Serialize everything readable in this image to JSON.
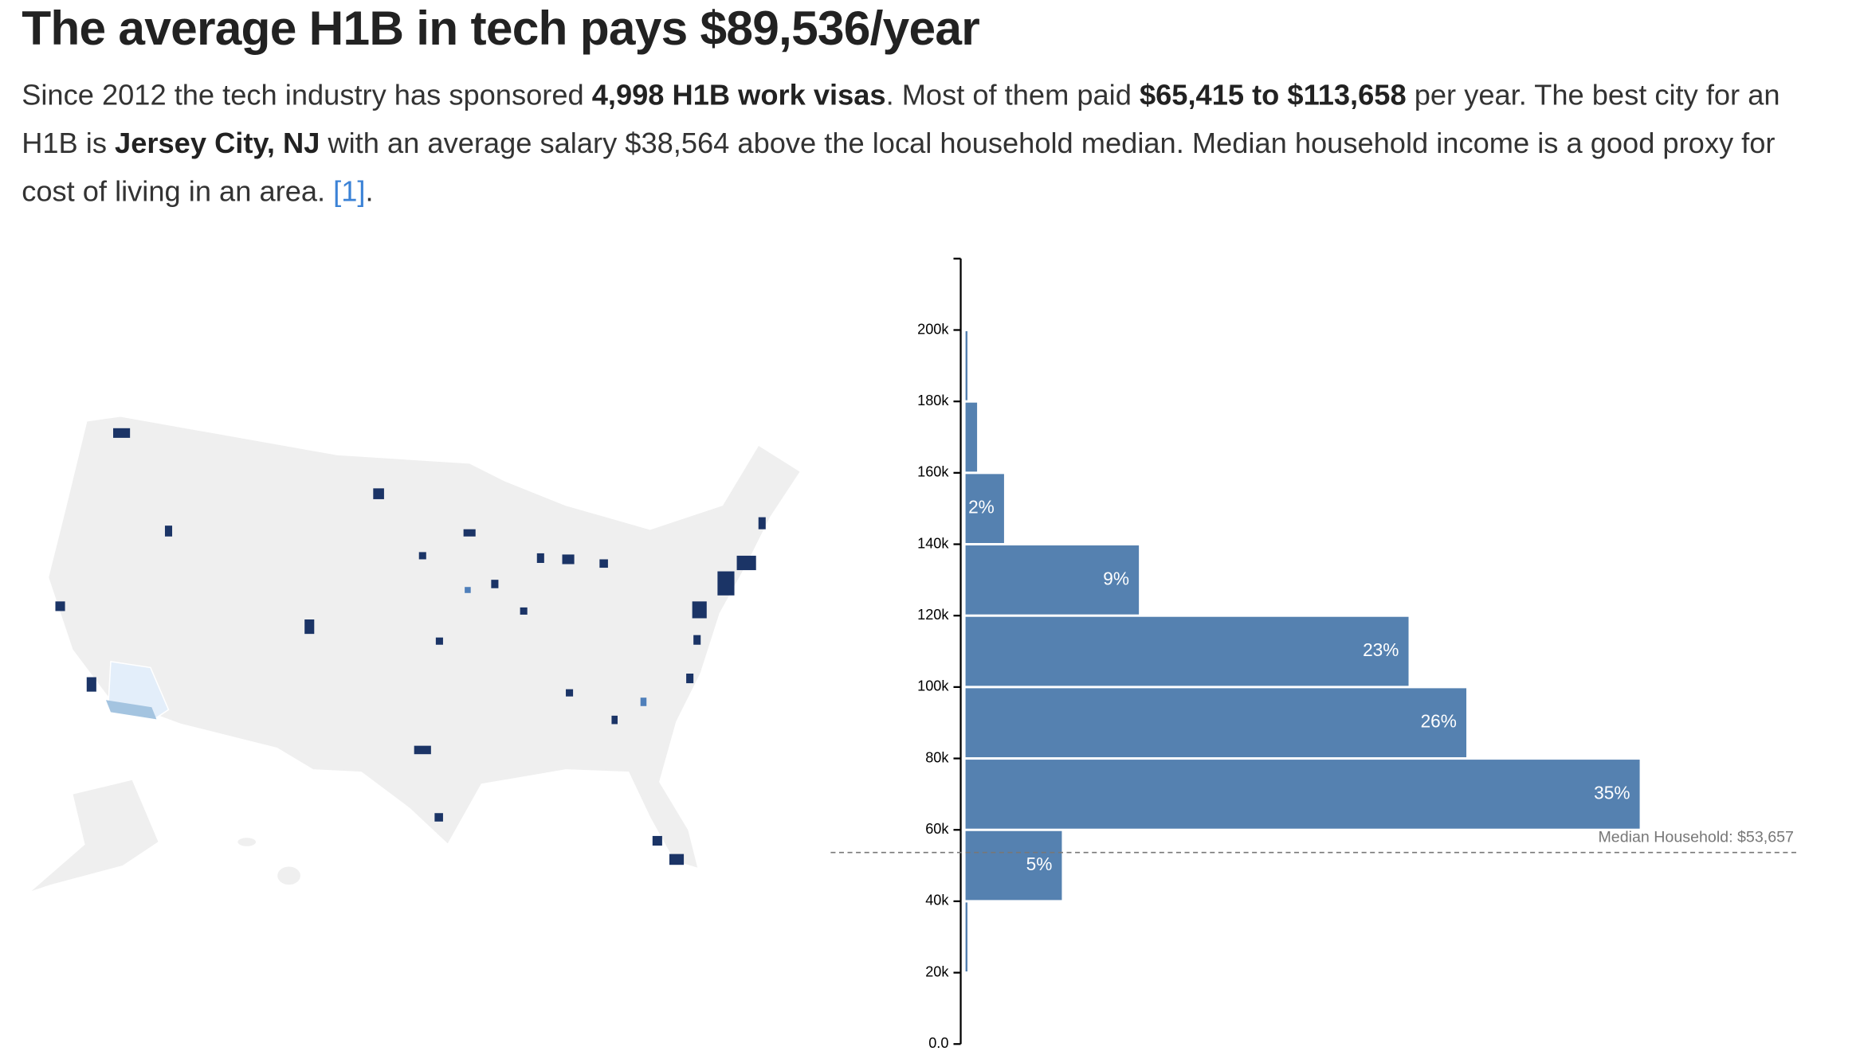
{
  "header": {
    "title": "The average H1B in tech pays $89,536/year"
  },
  "intro": [
    "Since 2012 the tech industry has sponsored ",
    "4,998 H1B work visas",
    ". Most of them paid ",
    "$65,415 to $113,658",
    " per year. The best city for an H1B is ",
    "Jersey City, NJ",
    " with an average salary $38,564 above the local household median. Median household income is a good proxy for cost of living in an area. ",
    "[1]",
    "."
  ],
  "chart_data": {
    "type": "histogram",
    "orientation": "horizontal",
    "color": "#5581b0",
    "bins": [
      0,
      20000,
      40000,
      60000,
      80000,
      100000,
      120000,
      140000,
      160000,
      180000,
      200000
    ],
    "values": [
      0,
      0.1,
      5,
      35,
      26,
      23,
      9,
      2,
      0.6,
      0.1
    ],
    "value_labels": [
      null,
      null,
      "5%",
      "35%",
      "26%",
      "23%",
      "9%",
      "2%",
      null,
      null
    ],
    "ylim": [
      0,
      220000
    ],
    "yticks": [
      {
        "value": 0,
        "label": "0.0"
      },
      {
        "value": 20000,
        "label": "20k"
      },
      {
        "value": 40000,
        "label": "40k"
      },
      {
        "value": 60000,
        "label": "60k"
      },
      {
        "value": 80000,
        "label": "80k"
      },
      {
        "value": 100000,
        "label": "100k"
      },
      {
        "value": 120000,
        "label": "120k"
      },
      {
        "value": 140000,
        "label": "140k"
      },
      {
        "value": 160000,
        "label": "160k"
      },
      {
        "value": 180000,
        "label": "180k"
      },
      {
        "value": 200000,
        "label": "200k"
      }
    ],
    "median_household": 53657,
    "median_label": "Median Household: $53,657"
  }
}
